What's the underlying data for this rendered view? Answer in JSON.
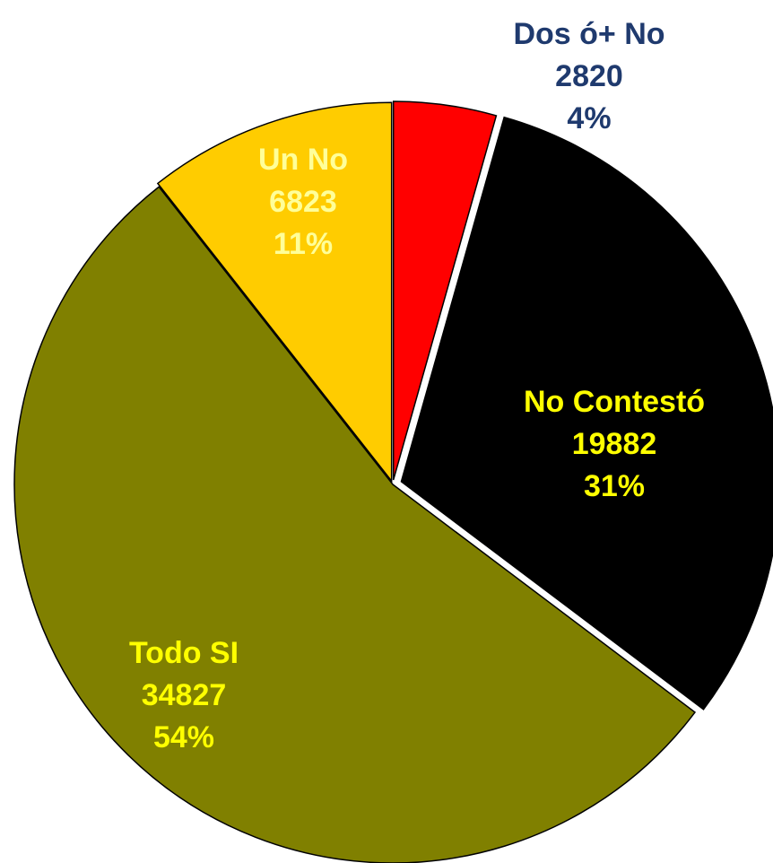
{
  "chart_data": {
    "type": "pie",
    "categories": [
      "Dos ó+ No",
      "No Contestó",
      "Todo SI",
      "Un No"
    ],
    "values": [
      2820,
      19882,
      34827,
      6823
    ],
    "percents": [
      4,
      31,
      54,
      11
    ],
    "percent_labels": [
      "4%",
      "31%",
      "54%",
      "11%"
    ],
    "colors": [
      "#ff0000",
      "#000000",
      "#808000",
      "#ffcc00"
    ],
    "label_colors": [
      "#1f3a6e",
      "#ffff00",
      "#ffff00",
      "#ffff99"
    ]
  }
}
